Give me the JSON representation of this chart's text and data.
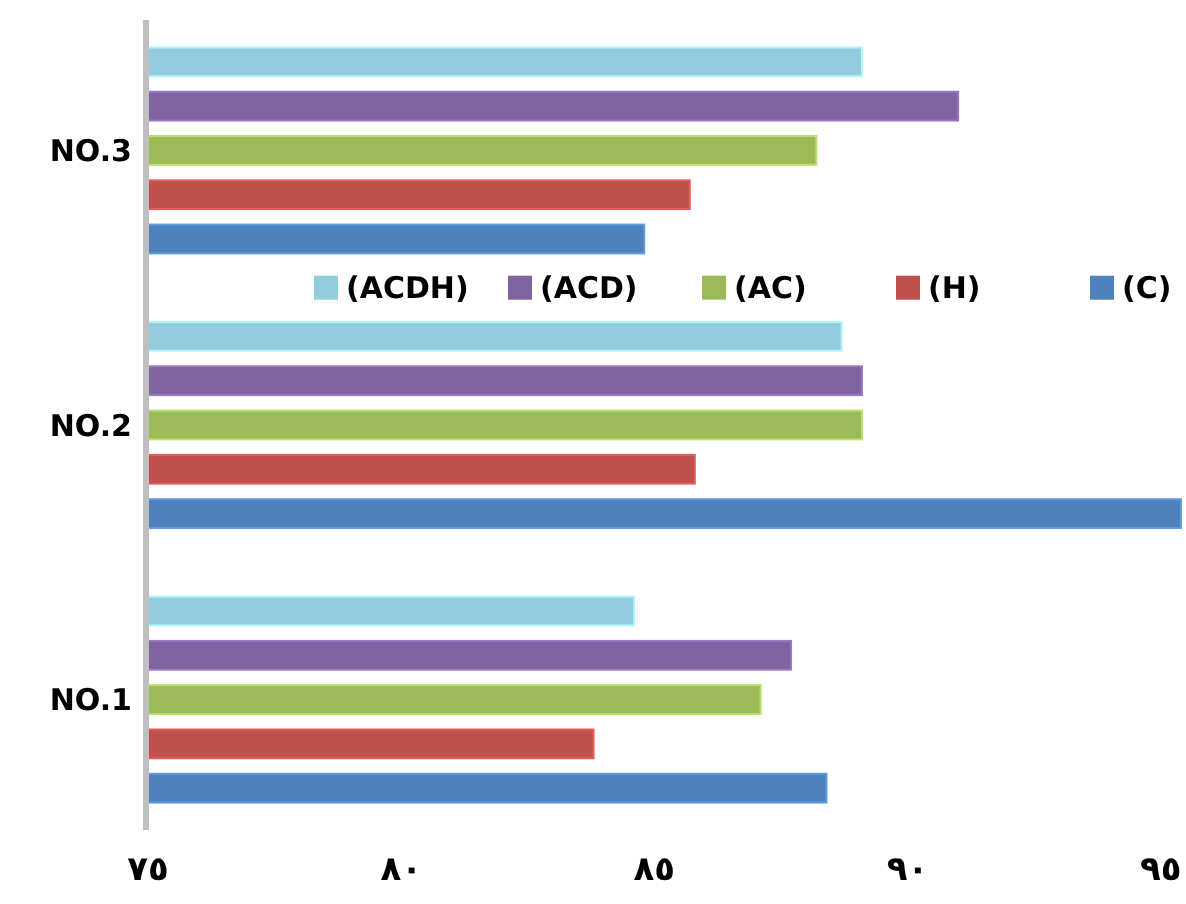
{
  "chart_data": {
    "type": "bar",
    "orientation": "horizontal",
    "categories": [
      "NO.3",
      "NO.2",
      "NO.1"
    ],
    "series": [
      {
        "name": "(ACDH)",
        "color": "#93cddd",
        "values": [
          89.1,
          88.7,
          84.6
        ]
      },
      {
        "name": "(ACD)",
        "color": "#8064a2",
        "values": [
          91.0,
          89.1,
          87.7
        ]
      },
      {
        "name": "(AC)",
        "color": "#9bbb59",
        "values": [
          88.2,
          89.1,
          87.1
        ]
      },
      {
        "name": "(H)",
        "color": "#c0504d",
        "values": [
          85.7,
          85.8,
          83.8
        ]
      },
      {
        "name": "(C)",
        "color": "#4f81bd",
        "values": [
          84.8,
          95.4,
          88.4
        ]
      }
    ],
    "xlim": [
      75,
      95.5
    ],
    "xticks": [
      {
        "value": 75,
        "label": "٧٥"
      },
      {
        "value": 80,
        "label": "٨٠"
      },
      {
        "value": 85,
        "label": "٨٥"
      },
      {
        "value": 90,
        "label": "٩٠"
      },
      {
        "value": 95,
        "label": "٩٥"
      }
    ],
    "legend": "top",
    "grid": false
  }
}
